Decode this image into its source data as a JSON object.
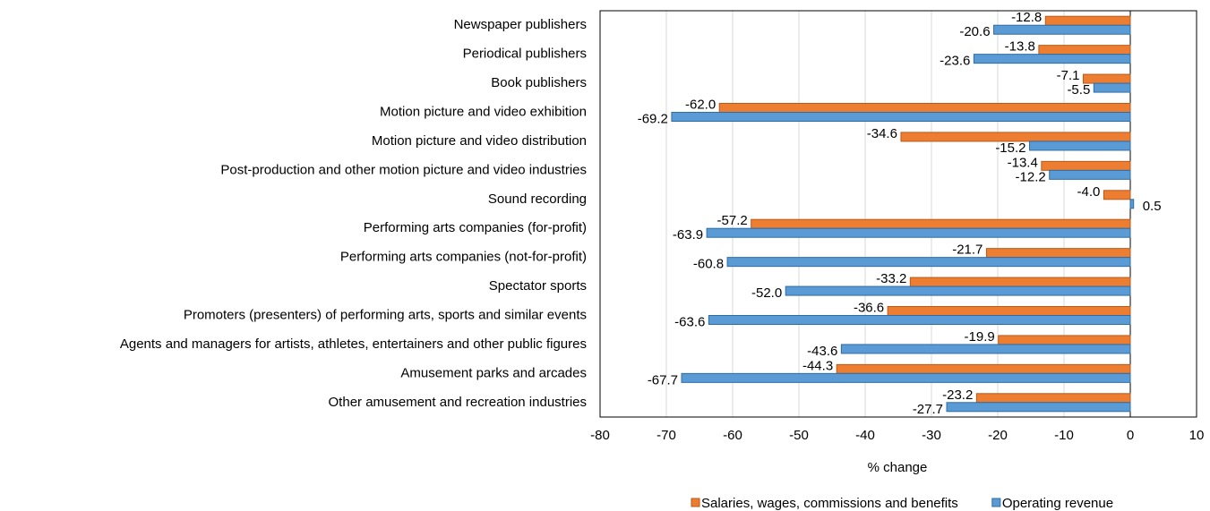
{
  "chart_data": {
    "type": "bar",
    "orientation": "horizontal",
    "categories": [
      "Newspaper publishers",
      "Periodical publishers",
      "Book publishers",
      "Motion picture and video exhibition",
      "Motion picture and video distribution",
      "Post-production and other motion picture and video industries",
      "Sound recording",
      "Performing arts companies (for-profit)",
      "Performing arts companies (not-for-profit)",
      "Spectator sports",
      "Promoters (presenters) of performing arts, sports and similar events",
      "Agents and managers for artists, athletes, entertainers and other public figures",
      "Amusement parks and arcades",
      "Other amusement and recreation industries"
    ],
    "series": [
      {
        "name": "Salaries, wages, commissions and benefits",
        "color": "#ed7d31",
        "values": [
          -12.8,
          -13.8,
          -7.1,
          -62.0,
          -34.6,
          -13.4,
          -4.0,
          -57.2,
          -21.7,
          -33.2,
          -36.6,
          -19.9,
          -44.3,
          -23.2
        ],
        "value_labels": [
          "-12.8",
          "-13.8",
          "-7.1",
          "-62.0",
          "-34.6",
          "-13.4",
          "-4.0",
          "-57.2",
          "-21.7",
          "-33.2",
          "-36.6",
          "-19.9",
          "-44.3",
          "-23.2"
        ]
      },
      {
        "name": "Operating revenue",
        "color": "#5b9bd5",
        "values": [
          -20.6,
          -23.6,
          -5.5,
          -69.2,
          -15.2,
          -12.2,
          0.5,
          -63.9,
          -60.8,
          -52.0,
          -63.6,
          -43.6,
          -67.7,
          -27.7
        ],
        "value_labels": [
          "-20.6",
          "-23.6",
          "-5.5",
          "-69.2",
          "-15.2",
          "-12.2",
          "0.5",
          "-63.9",
          "-60.8",
          "-52.0",
          "-63.6",
          "-43.6",
          "-67.7",
          "-27.7"
        ]
      }
    ],
    "xlabel": "% change",
    "xlim": [
      -80,
      10
    ],
    "xticks": [
      -80,
      -70,
      -60,
      -50,
      -40,
      -30,
      -20,
      -10,
      0,
      10
    ],
    "grid": true,
    "legend": "bottom"
  }
}
